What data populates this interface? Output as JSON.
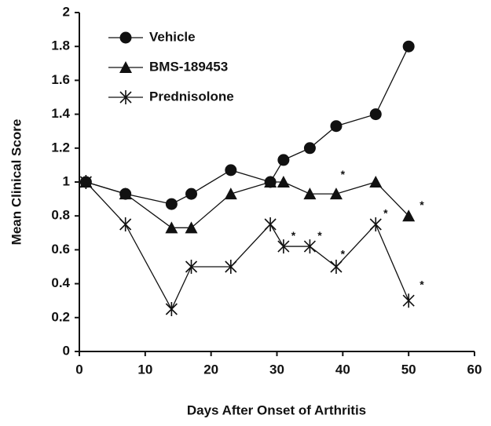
{
  "chart_data": {
    "type": "line",
    "xlabel": "Days After Onset of Arthritis",
    "ylabel": "Mean Clinical Score",
    "xlim": [
      0,
      60
    ],
    "xticks": [
      0,
      10,
      20,
      30,
      40,
      50,
      60
    ],
    "ylim": [
      0,
      2
    ],
    "yticks": [
      0,
      0.2,
      0.4,
      0.6,
      0.8,
      1,
      1.2,
      1.4,
      1.6,
      1.8,
      2
    ],
    "grid": false,
    "legend": "upper left",
    "series": [
      {
        "name": "Vehicle",
        "color": "#111111",
        "marker": "circle",
        "x": [
          1,
          7,
          14,
          17,
          23,
          29,
          31,
          35,
          39,
          45,
          50
        ],
        "values": [
          1.0,
          0.93,
          0.87,
          0.93,
          1.07,
          1.0,
          1.13,
          1.2,
          1.33,
          1.4,
          1.8
        ]
      },
      {
        "name": "BMS-189453",
        "color": "#111111",
        "marker": "triangle",
        "x": [
          1,
          7,
          14,
          17,
          23,
          29,
          31,
          35,
          39,
          45,
          50
        ],
        "values": [
          1.0,
          0.93,
          0.73,
          0.73,
          0.93,
          1.0,
          1.0,
          0.93,
          0.93,
          1.0,
          0.8
        ]
      },
      {
        "name": "Prednisolone",
        "color": "#111111",
        "marker": "asterisk",
        "x": [
          1,
          7,
          14,
          17,
          23,
          29,
          31,
          35,
          39,
          45,
          50
        ],
        "values": [
          1.0,
          0.75,
          0.25,
          0.5,
          0.5,
          0.75,
          0.62,
          0.62,
          0.5,
          0.75,
          0.3
        ]
      }
    ],
    "annotations": [
      {
        "text": "*",
        "x": 40,
        "y": 1.04
      },
      {
        "text": "*",
        "x": 32.5,
        "y": 0.68
      },
      {
        "text": "*",
        "x": 36.5,
        "y": 0.68
      },
      {
        "text": "*",
        "x": 40,
        "y": 0.57
      },
      {
        "text": "*",
        "x": 46.5,
        "y": 0.81
      },
      {
        "text": "*",
        "x": 52,
        "y": 0.86
      },
      {
        "text": "*",
        "x": 52,
        "y": 0.39
      }
    ]
  }
}
